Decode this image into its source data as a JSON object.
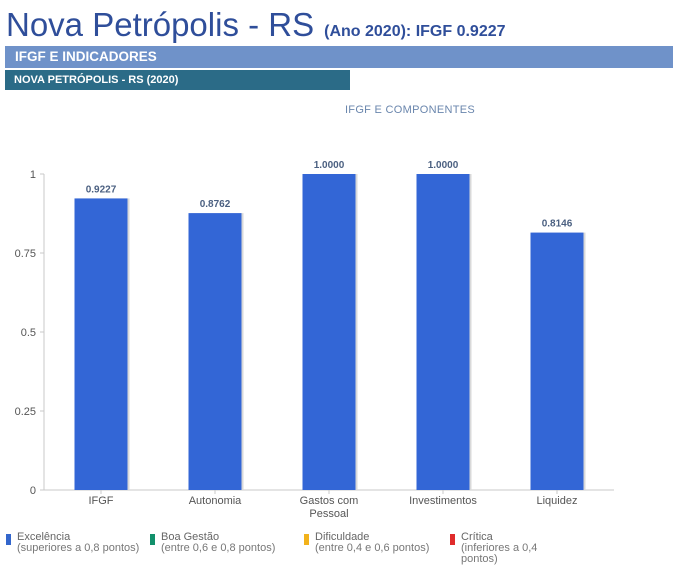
{
  "header": {
    "city_title": "Nova Petrópolis - RS",
    "year_index": "(Ano 2020): IFGF  0.9227"
  },
  "banner": {
    "section": "IFGF E INDICADORES",
    "subsection": "NOVA PETRÓPOLIS - RS (2020)"
  },
  "chart_data": {
    "type": "bar",
    "title": "IFGF E COMPONENTES",
    "categories": [
      "IFGF",
      "Autonomia",
      "Gastos com Pessoal",
      "Investimentos",
      "Liquidez"
    ],
    "values": [
      0.9227,
      0.8762,
      1.0,
      1.0,
      0.8146
    ],
    "data_labels": [
      "0.9227",
      "0.8762",
      "1.0000",
      "1.0000",
      "0.8146"
    ],
    "yticks": [
      "0",
      "0.25",
      "0.5",
      "0.75",
      "1"
    ],
    "ylim": [
      0,
      1
    ],
    "bar_color": "#3366d6",
    "grid": false
  },
  "legend": [
    {
      "label": "Excelência",
      "desc": "(superiores a 0,8 pontos)",
      "color": "#3366cc"
    },
    {
      "label": "Boa Gestão",
      "desc": "(entre 0,6 e 0,8 pontos)",
      "color": "#12906b"
    },
    {
      "label": "Dificuldade",
      "desc": "(entre 0,4 e 0,6 pontos)",
      "color": "#f2b21b"
    },
    {
      "label": "Crítica",
      "desc": "(inferiores a 0,4 pontos)",
      "color": "#e02b2b"
    }
  ]
}
